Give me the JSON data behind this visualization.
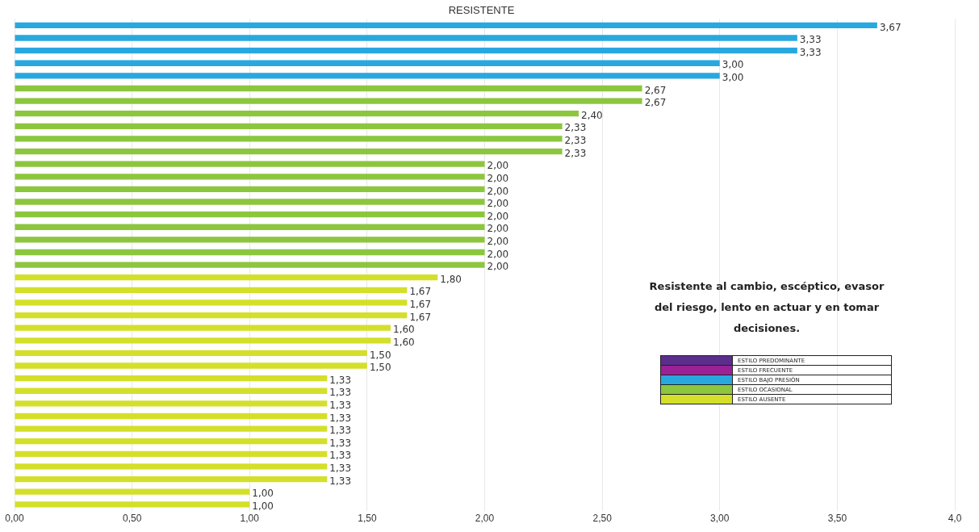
{
  "chart_data": {
    "type": "bar",
    "orientation": "horizontal",
    "stacked": true,
    "title": "RESISTENTE",
    "categories": [
      null,
      null,
      null,
      null,
      null,
      null,
      null,
      null,
      null,
      null,
      null,
      null,
      null,
      null,
      null,
      null,
      null,
      null,
      null,
      null,
      null,
      null,
      null,
      null,
      null,
      null,
      null,
      null,
      null,
      null,
      null,
      null,
      null,
      null,
      null,
      null,
      null,
      null,
      null
    ],
    "series": [
      {
        "name": "ESTILO PREDOMINANTE",
        "color": "#5b2d8c",
        "values": [
          null,
          null,
          null,
          null,
          null,
          null,
          null,
          null,
          null,
          null,
          null,
          null,
          null,
          null,
          null,
          null,
          null,
          null,
          null,
          null,
          null,
          null,
          null,
          null,
          null,
          null,
          null,
          null,
          null,
          null,
          null,
          null,
          null,
          null,
          null,
          null,
          null,
          null,
          null
        ],
        "value_labels": [
          null,
          null,
          null,
          null,
          null,
          null,
          null,
          null,
          null,
          null,
          null,
          null,
          null,
          null,
          null,
          null,
          null,
          null,
          null,
          null,
          null,
          null,
          null,
          null,
          null,
          null,
          null,
          null,
          null,
          null,
          null,
          null,
          null,
          null,
          null,
          null,
          null,
          null,
          null
        ]
      },
      {
        "name": "ESTILO FRECUENTE",
        "color": "#9b2296",
        "values": [
          null,
          null,
          null,
          null,
          null,
          null,
          null,
          null,
          null,
          null,
          null,
          null,
          null,
          null,
          null,
          null,
          null,
          null,
          null,
          null,
          null,
          null,
          null,
          null,
          null,
          null,
          null,
          null,
          null,
          null,
          null,
          null,
          null,
          null,
          null,
          null,
          null,
          null,
          null
        ],
        "value_labels": [
          null,
          null,
          null,
          null,
          null,
          null,
          null,
          null,
          null,
          null,
          null,
          null,
          null,
          null,
          null,
          null,
          null,
          null,
          null,
          null,
          null,
          null,
          null,
          null,
          null,
          null,
          null,
          null,
          null,
          null,
          null,
          null,
          null,
          null,
          null,
          null,
          null,
          null,
          null
        ]
      },
      {
        "name": "ESTILO BAJO PRESIÓN",
        "color": "#29a8e0",
        "values": [
          3.67,
          3.33,
          3.33,
          3.0,
          3.0,
          null,
          null,
          null,
          null,
          null,
          null,
          null,
          null,
          null,
          null,
          null,
          null,
          null,
          null,
          null,
          null,
          null,
          null,
          null,
          null,
          null,
          null,
          null,
          null,
          null,
          null,
          null,
          null,
          null,
          null,
          null,
          null,
          null,
          null
        ],
        "value_labels": [
          "3,67",
          "3,33",
          "3,33",
          "3,00",
          "3,00",
          null,
          null,
          null,
          null,
          null,
          null,
          null,
          null,
          null,
          null,
          null,
          null,
          null,
          null,
          null,
          null,
          null,
          null,
          null,
          null,
          null,
          null,
          null,
          null,
          null,
          null,
          null,
          null,
          null,
          null,
          null,
          null,
          null,
          null
        ]
      },
      {
        "name": "ESTILO OCASIONAL",
        "color": "#8cc63f",
        "values": [
          null,
          null,
          null,
          null,
          null,
          2.67,
          2.67,
          2.4,
          2.33,
          2.33,
          2.33,
          2.0,
          2.0,
          2.0,
          2.0,
          2.0,
          2.0,
          2.0,
          2.0,
          2.0,
          null,
          null,
          null,
          null,
          null,
          null,
          null,
          null,
          null,
          null,
          null,
          null,
          null,
          null,
          null,
          null,
          null,
          null,
          null
        ],
        "value_labels": [
          null,
          null,
          null,
          null,
          null,
          "2,67",
          "2,67",
          "2,40",
          "2,33",
          "2,33",
          "2,33",
          "2,00",
          "2,00",
          "2,00",
          "2,00",
          "2,00",
          "2,00",
          "2,00",
          "2,00",
          "2,00",
          null,
          null,
          null,
          null,
          null,
          null,
          null,
          null,
          null,
          null,
          null,
          null,
          null,
          null,
          null,
          null,
          null,
          null,
          null
        ]
      },
      {
        "name": "ESTILO AUSENTE",
        "color": "#d4df2a",
        "values": [
          null,
          null,
          null,
          null,
          null,
          null,
          null,
          null,
          null,
          null,
          null,
          null,
          null,
          null,
          null,
          null,
          null,
          null,
          null,
          null,
          1.8,
          1.67,
          1.67,
          1.67,
          1.6,
          1.6,
          1.5,
          1.5,
          1.33,
          1.33,
          1.33,
          1.33,
          1.33,
          1.33,
          1.33,
          1.33,
          1.33,
          1.0,
          1.0
        ],
        "value_labels": [
          null,
          null,
          null,
          null,
          null,
          null,
          null,
          null,
          null,
          null,
          null,
          null,
          null,
          null,
          null,
          null,
          null,
          null,
          null,
          null,
          "1,80",
          "1,67",
          "1,67",
          "1,67",
          "1,60",
          "1,60",
          "1,50",
          "1,50",
          "1,33",
          "1,33",
          "1,33",
          "1,33",
          "1,33",
          "1,33",
          "1,33",
          "1,33",
          "1,33",
          "1,00",
          "1,00"
        ]
      }
    ],
    "xlim": [
      0,
      4
    ],
    "xticks": [
      {
        "value": 0,
        "label": "0,00"
      },
      {
        "value": 0.5,
        "label": "0,50"
      },
      {
        "value": 1,
        "label": "1,00"
      },
      {
        "value": 1.5,
        "label": "1,50"
      },
      {
        "value": 2,
        "label": "2,00"
      },
      {
        "value": 2.5,
        "label": "2,50"
      },
      {
        "value": 3,
        "label": "3,00"
      },
      {
        "value": 3.5,
        "label": "3,50"
      },
      {
        "value": 4,
        "label": "4,0"
      }
    ],
    "grid": "x",
    "tick_labels": "x",
    "legend": "bottom right",
    "annotations": [
      "Resistente al cambio, escéptico, evasor del riesgo, lento en actuar y en tomar decisiones."
    ]
  }
}
